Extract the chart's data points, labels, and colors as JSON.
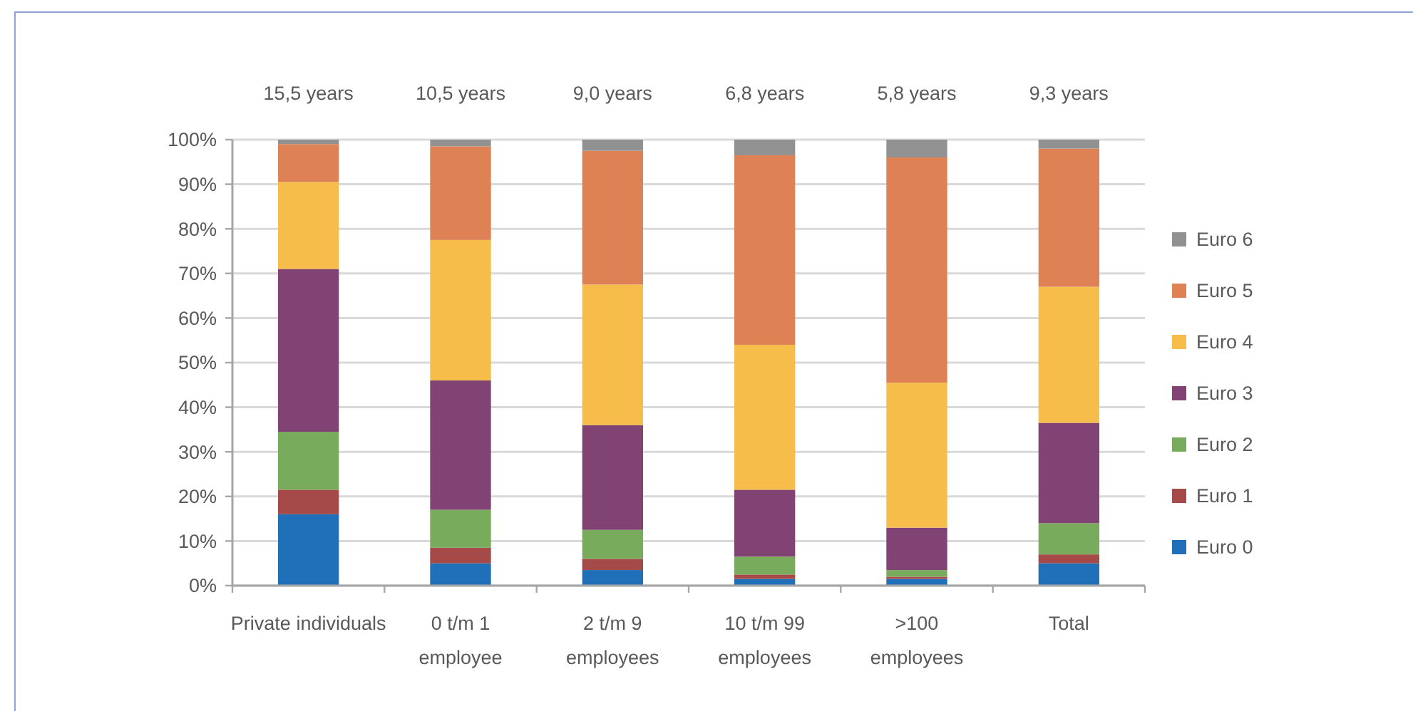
{
  "chart_data": {
    "type": "bar",
    "stacked": true,
    "categories": [
      "Private individuals",
      "0 t/m 1\nemployee",
      "2 t/m 9\nemployees",
      "10 t/m 99\nemployees",
      ">100\nemployees",
      "Total"
    ],
    "series": [
      {
        "name": "Euro 0",
        "color": "#1f70b8",
        "values": [
          16,
          5,
          3.5,
          1.5,
          1.5,
          5
        ]
      },
      {
        "name": "Euro 1",
        "color": "#a54a48",
        "values": [
          5.5,
          3.5,
          2.5,
          1,
          0.5,
          2
        ]
      },
      {
        "name": "Euro 2",
        "color": "#79ab5c",
        "values": [
          13,
          8.5,
          6.5,
          4,
          1.5,
          7
        ]
      },
      {
        "name": "Euro 3",
        "color": "#814373",
        "values": [
          36.5,
          29,
          23.5,
          15,
          9.5,
          22.5
        ]
      },
      {
        "name": "Euro 4",
        "color": "#f6bd4b",
        "values": [
          19.5,
          31.5,
          31.5,
          32.5,
          32.5,
          30.5
        ]
      },
      {
        "name": "Euro 5",
        "color": "#de8154",
        "values": [
          8.5,
          21,
          30,
          42.5,
          50.5,
          31
        ]
      },
      {
        "name": "Euro 6",
        "color": "#919191",
        "values": [
          1,
          1.5,
          2.5,
          3.5,
          4,
          2
        ]
      }
    ],
    "ylim": [
      0,
      100
    ],
    "yticks": [
      {
        "value": 0,
        "label": "0%"
      },
      {
        "value": 10,
        "label": "10%"
      },
      {
        "value": 20,
        "label": "20%"
      },
      {
        "value": 30,
        "label": "30%"
      },
      {
        "value": 40,
        "label": "40%"
      },
      {
        "value": 50,
        "label": "50%"
      },
      {
        "value": 60,
        "label": "60%"
      },
      {
        "value": 70,
        "label": "70%"
      },
      {
        "value": 80,
        "label": "80%"
      },
      {
        "value": 90,
        "label": "90%"
      },
      {
        "value": 100,
        "label": "100%"
      }
    ],
    "annotations": [
      "15,5 years",
      "10,5 years",
      "9,0 years",
      "6,8 years",
      "5,8 years",
      "9,3 years"
    ],
    "grid": "y",
    "legend": "right"
  }
}
